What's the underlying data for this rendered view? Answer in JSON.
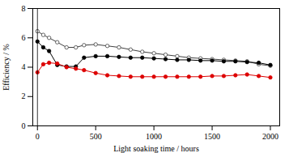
{
  "chart_data": {
    "type": "line",
    "xlabel": "Light soaking time / hours",
    "ylabel": "Efficiency / %",
    "x": [
      0,
      50,
      100,
      170,
      250,
      330,
      400,
      500,
      600,
      700,
      800,
      900,
      1000,
      1100,
      1200,
      1300,
      1400,
      1500,
      1600,
      1700,
      1800,
      1900,
      2000
    ],
    "series": [
      {
        "color": "#404040",
        "marker": "open_circle",
        "line_style": "solid",
        "values": [
          6.45,
          6.2,
          6.0,
          5.7,
          5.35,
          5.35,
          5.5,
          5.55,
          5.45,
          5.35,
          5.2,
          5.05,
          4.95,
          4.85,
          4.75,
          4.65,
          4.6,
          4.55,
          4.5,
          4.45,
          4.4,
          4.2,
          4.1
        ]
      },
      {
        "color": "#000000",
        "marker": "filled_circle",
        "line_style": "solid",
        "values": [
          5.75,
          5.35,
          5.1,
          4.15,
          4.05,
          4.05,
          4.65,
          4.75,
          4.75,
          4.7,
          4.65,
          4.65,
          4.6,
          4.55,
          4.5,
          4.5,
          4.45,
          4.45,
          4.4,
          4.4,
          4.35,
          4.3,
          4.15
        ]
      },
      {
        "color": "#dd0000",
        "marker": "filled_circle",
        "line_style": "solid",
        "values": [
          3.65,
          4.2,
          4.3,
          4.25,
          4.0,
          3.9,
          3.8,
          3.6,
          3.45,
          3.4,
          3.35,
          3.35,
          3.35,
          3.35,
          3.35,
          3.35,
          3.35,
          3.4,
          3.4,
          3.45,
          3.5,
          3.4,
          3.3
        ]
      }
    ],
    "vlines": [
      0
    ],
    "xlim": [
      -40,
      2080
    ],
    "ylim": [
      0,
      8
    ],
    "xticks": [
      0,
      500,
      1000,
      1500,
      2000
    ],
    "yticks": [
      0,
      2,
      4,
      6,
      8
    ],
    "grid": false
  }
}
